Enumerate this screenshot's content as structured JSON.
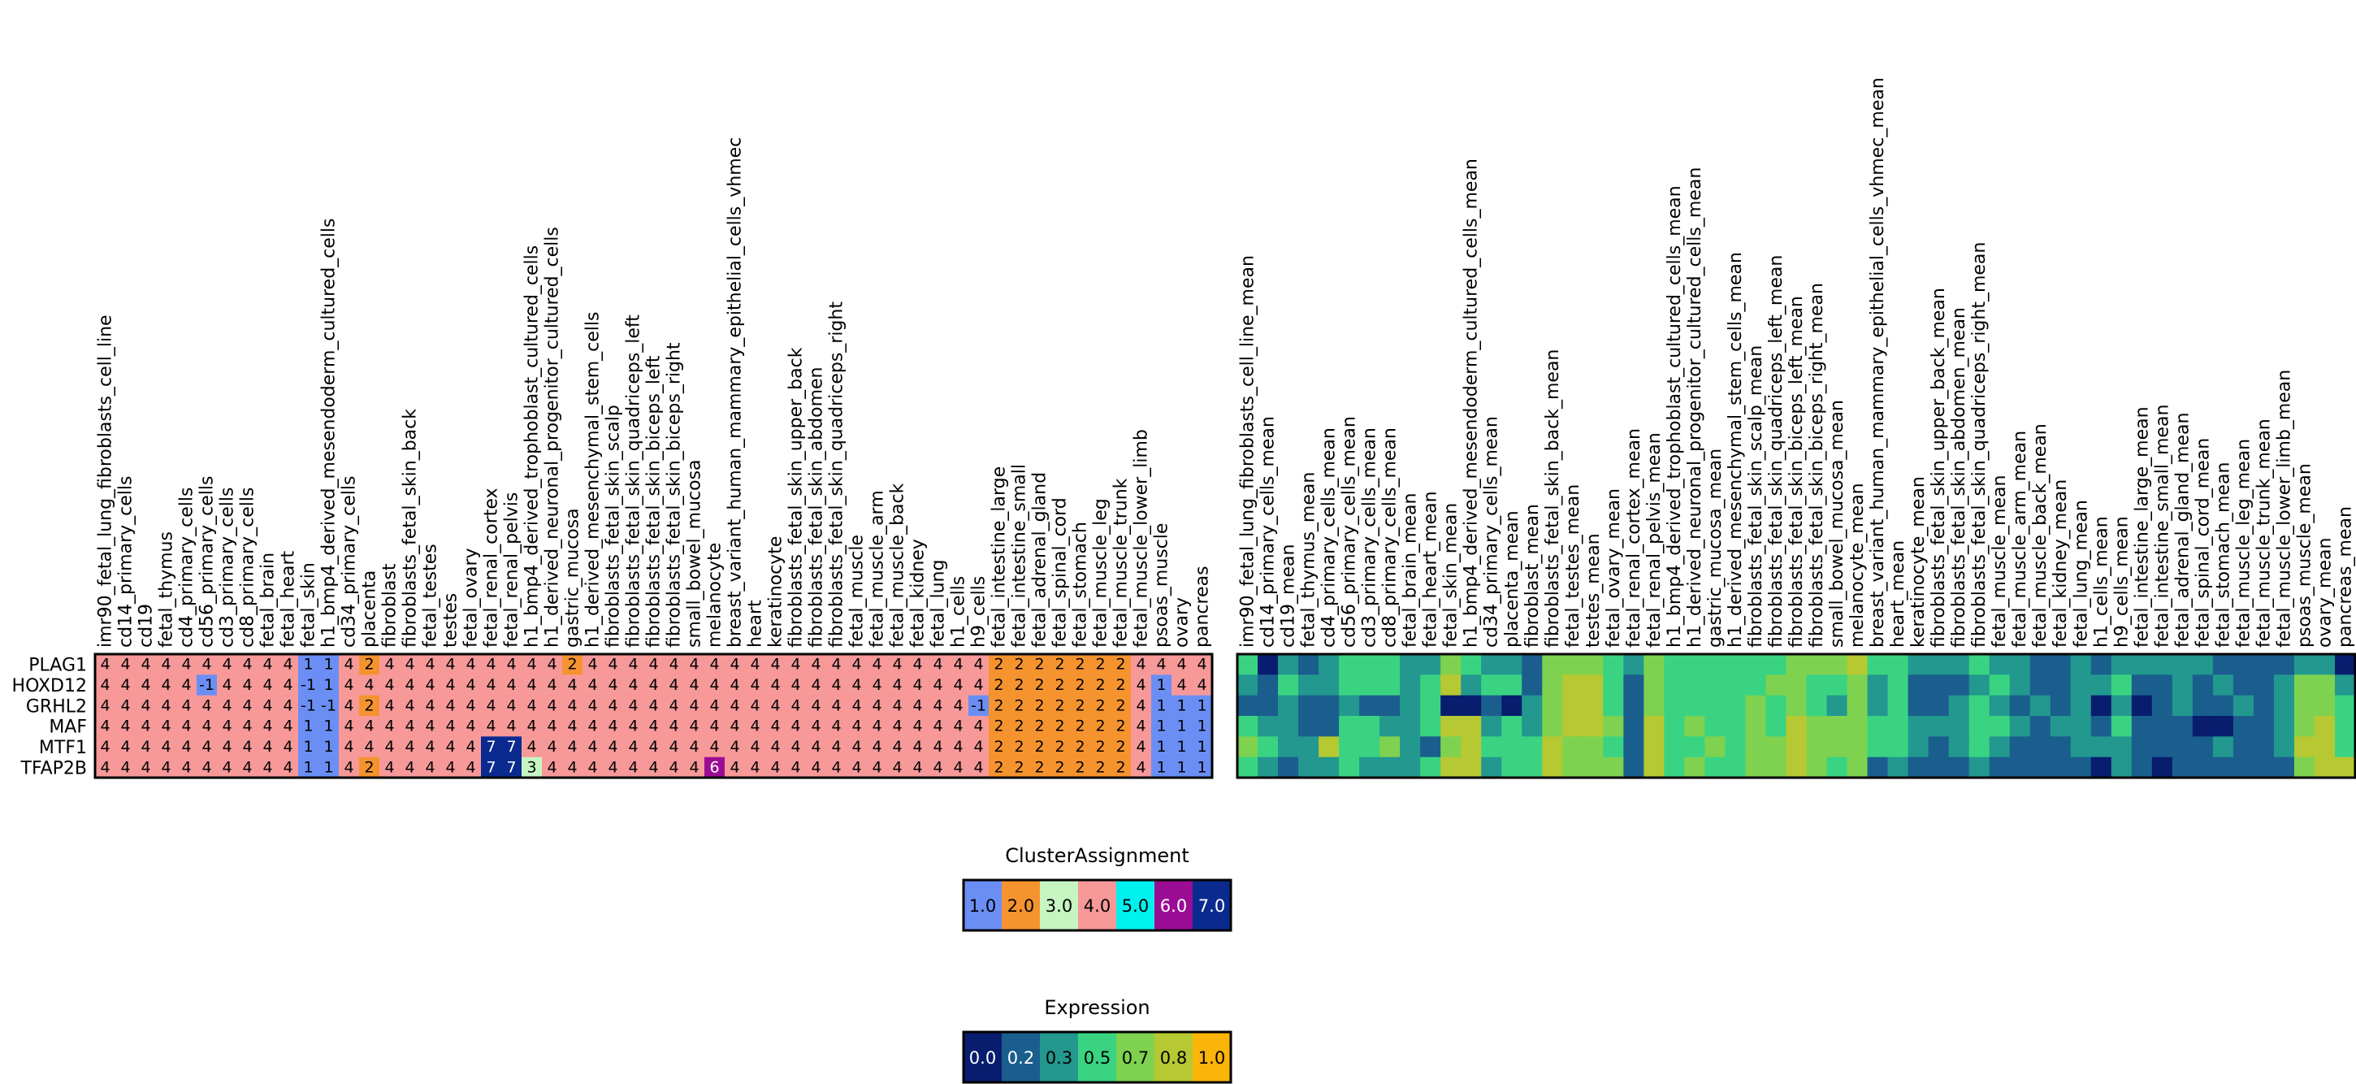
{
  "chart_data": [
    {
      "type": "heatmap",
      "title": "",
      "rows": [
        "PLAG1",
        "HOXD12",
        "GRHL2",
        "MAF",
        "MTF1",
        "TFAP2B"
      ],
      "columns": [
        "imr90_fetal_lung_fibroblasts_cell_line",
        "cd14_primary_cells",
        "cd19",
        "fetal_thymus",
        "cd4_primary_cells",
        "cd56_primary_cells",
        "cd3_primary_cells",
        "cd8_primary_cells",
        "fetal_brain",
        "fetal_heart",
        "fetal_skin",
        "h1_bmp4_derived_mesendoderm_cultured_cells",
        "cd34_primary_cells",
        "placenta",
        "fibroblast",
        "fibroblasts_fetal_skin_back",
        "fetal_testes",
        "testes",
        "fetal_ovary",
        "fetal_renal_cortex",
        "fetal_renal_pelvis",
        "h1_bmp4_derived_trophoblast_cultured_cells",
        "h1_derived_neuronal_progenitor_cultured_cells",
        "gastric_mucosa",
        "h1_derived_mesenchymal_stem_cells",
        "fibroblasts_fetal_skin_scalp",
        "fibroblasts_fetal_skin_quadriceps_left",
        "fibroblasts_fetal_skin_biceps_left",
        "fibroblasts_fetal_skin_biceps_right",
        "small_bowel_mucosa",
        "melanocyte",
        "breast_variant_human_mammary_epithelial_cells_vhmec",
        "heart",
        "keratinocyte",
        "fibroblasts_fetal_skin_upper_back",
        "fibroblasts_fetal_skin_abdomen",
        "fibroblasts_fetal_skin_quadriceps_right",
        "fetal_muscle",
        "fetal_muscle_arm",
        "fetal_muscle_back",
        "fetal_kidney",
        "fetal_lung",
        "h1_cells",
        "h9_cells",
        "fetal_intestine_large",
        "fetal_intestine_small",
        "fetal_adrenal_gland",
        "fetal_spinal_cord",
        "fetal_stomach",
        "fetal_muscle_leg",
        "fetal_muscle_trunk",
        "fetal_muscle_lower_limb",
        "psoas_muscle",
        "ovary",
        "pancreas"
      ],
      "values": [
        [
          4,
          4,
          4,
          4,
          4,
          4,
          4,
          4,
          4,
          4,
          1,
          1,
          4,
          2,
          4,
          4,
          4,
          4,
          4,
          4,
          4,
          4,
          4,
          2,
          4,
          4,
          4,
          4,
          4,
          4,
          4,
          4,
          4,
          4,
          4,
          4,
          4,
          4,
          4,
          4,
          4,
          4,
          4,
          4,
          2,
          2,
          2,
          2,
          2,
          2,
          2,
          4,
          4,
          4,
          4
        ],
        [
          4,
          4,
          4,
          4,
          4,
          -1,
          4,
          4,
          4,
          4,
          -1,
          1,
          4,
          4,
          4,
          4,
          4,
          4,
          4,
          4,
          4,
          4,
          4,
          4,
          4,
          4,
          4,
          4,
          4,
          4,
          4,
          4,
          4,
          4,
          4,
          4,
          4,
          4,
          4,
          4,
          4,
          4,
          4,
          4,
          2,
          2,
          2,
          2,
          2,
          2,
          2,
          4,
          1,
          4,
          4
        ],
        [
          4,
          4,
          4,
          4,
          4,
          4,
          4,
          4,
          4,
          4,
          -1,
          -1,
          4,
          2,
          4,
          4,
          4,
          4,
          4,
          4,
          4,
          4,
          4,
          4,
          4,
          4,
          4,
          4,
          4,
          4,
          4,
          4,
          4,
          4,
          4,
          4,
          4,
          4,
          4,
          4,
          4,
          4,
          4,
          -1,
          2,
          2,
          2,
          2,
          2,
          2,
          2,
          4,
          1,
          1,
          1
        ],
        [
          4,
          4,
          4,
          4,
          4,
          4,
          4,
          4,
          4,
          4,
          1,
          1,
          4,
          4,
          4,
          4,
          4,
          4,
          4,
          4,
          4,
          4,
          4,
          4,
          4,
          4,
          4,
          4,
          4,
          4,
          4,
          4,
          4,
          4,
          4,
          4,
          4,
          4,
          4,
          4,
          4,
          4,
          4,
          4,
          2,
          2,
          2,
          2,
          2,
          2,
          2,
          4,
          1,
          1,
          1
        ],
        [
          4,
          4,
          4,
          4,
          4,
          4,
          4,
          4,
          4,
          4,
          1,
          1,
          4,
          4,
          4,
          4,
          4,
          4,
          4,
          7,
          7,
          4,
          4,
          4,
          4,
          4,
          4,
          4,
          4,
          4,
          4,
          4,
          4,
          4,
          4,
          4,
          4,
          4,
          4,
          4,
          4,
          4,
          4,
          4,
          2,
          2,
          2,
          2,
          2,
          2,
          2,
          4,
          1,
          1,
          1
        ],
        [
          4,
          4,
          4,
          4,
          4,
          4,
          4,
          4,
          4,
          4,
          1,
          1,
          4,
          2,
          4,
          4,
          4,
          4,
          4,
          7,
          7,
          3,
          4,
          4,
          4,
          4,
          4,
          4,
          4,
          4,
          6,
          4,
          4,
          4,
          4,
          4,
          4,
          4,
          4,
          4,
          4,
          4,
          4,
          4,
          2,
          2,
          2,
          2,
          2,
          2,
          2,
          4,
          1,
          1,
          1
        ]
      ],
      "cell_labels_shown": true
    },
    {
      "type": "heatmap",
      "title": "",
      "rows": [
        "PLAG1",
        "HOXD12",
        "GRHL2",
        "MAF",
        "MTF1",
        "TFAP2B"
      ],
      "columns": [
        "imr90_fetal_lung_fibroblasts_cell_line_mean",
        "cd14_primary_cells_mean",
        "cd19_mean",
        "fetal_thymus_mean",
        "cd4_primary_cells_mean",
        "cd56_primary_cells_mean",
        "cd3_primary_cells_mean",
        "cd8_primary_cells_mean",
        "fetal_brain_mean",
        "fetal_heart_mean",
        "fetal_skin_mean",
        "h1_bmp4_derived_mesendoderm_cultured_cells_mean",
        "cd34_primary_cells_mean",
        "placenta_mean",
        "fibroblast_mean",
        "fibroblasts_fetal_skin_back_mean",
        "fetal_testes_mean",
        "testes_mean",
        "fetal_ovary_mean",
        "fetal_renal_cortex_mean",
        "fetal_renal_pelvis_mean",
        "h1_bmp4_derived_trophoblast_cultured_cells_mean",
        "h1_derived_neuronal_progenitor_cultured_cells_mean",
        "gastric_mucosa_mean",
        "h1_derived_mesenchymal_stem_cells_mean",
        "fibroblasts_fetal_skin_scalp_mean",
        "fibroblasts_fetal_skin_quadriceps_left_mean",
        "fibroblasts_fetal_skin_biceps_left_mean",
        "fibroblasts_fetal_skin_biceps_right_mean",
        "small_bowel_mucosa_mean",
        "melanocyte_mean",
        "breast_variant_human_mammary_epithelial_cells_vhmec_mean",
        "heart_mean",
        "keratinocyte_mean",
        "fibroblasts_fetal_skin_upper_back_mean",
        "fibroblasts_fetal_skin_abdomen_mean",
        "fibroblasts_fetal_skin_quadriceps_right_mean",
        "fetal_muscle_mean",
        "fetal_muscle_arm_mean",
        "fetal_muscle_back_mean",
        "fetal_kidney_mean",
        "fetal_lung_mean",
        "h1_cells_mean",
        "h9_cells_mean",
        "fetal_intestine_large_mean",
        "fetal_intestine_small_mean",
        "fetal_adrenal_gland_mean",
        "fetal_spinal_cord_mean",
        "fetal_stomach_mean",
        "fetal_muscle_leg_mean",
        "fetal_muscle_trunk_mean",
        "fetal_muscle_lower_limb_mean",
        "psoas_muscle_mean",
        "ovary_mean",
        "pancreas_mean"
      ],
      "values": [
        [
          0.5,
          0.0,
          0.3,
          0.2,
          0.3,
          0.5,
          0.5,
          0.5,
          0.3,
          0.3,
          0.7,
          0.5,
          0.3,
          0.3,
          0.2,
          0.7,
          0.7,
          0.7,
          0.5,
          0.3,
          0.7,
          0.5,
          0.5,
          0.5,
          0.5,
          0.5,
          0.5,
          0.7,
          0.7,
          0.7,
          0.8,
          0.5,
          0.5,
          0.3,
          0.3,
          0.3,
          0.5,
          0.3,
          0.3,
          0.2,
          0.2,
          0.3,
          0.2,
          0.3,
          0.3,
          0.3,
          0.3,
          0.3,
          0.2,
          0.2,
          0.2,
          0.2,
          0.3,
          0.3,
          0.0
        ],
        [
          0.3,
          0.2,
          0.5,
          0.3,
          0.3,
          0.5,
          0.5,
          0.5,
          0.3,
          0.5,
          0.8,
          0.3,
          0.5,
          0.5,
          0.2,
          0.7,
          0.8,
          0.8,
          0.5,
          0.2,
          0.7,
          0.5,
          0.5,
          0.5,
          0.5,
          0.5,
          0.7,
          0.7,
          0.5,
          0.5,
          0.7,
          0.3,
          0.5,
          0.2,
          0.2,
          0.2,
          0.3,
          0.5,
          0.3,
          0.2,
          0.2,
          0.3,
          0.3,
          0.5,
          0.2,
          0.2,
          0.3,
          0.2,
          0.3,
          0.2,
          0.2,
          0.3,
          0.7,
          0.7,
          0.3
        ],
        [
          0.2,
          0.2,
          0.3,
          0.2,
          0.2,
          0.3,
          0.2,
          0.2,
          0.3,
          0.5,
          0.0,
          0.0,
          0.2,
          0.0,
          0.3,
          0.7,
          0.8,
          0.8,
          0.5,
          0.2,
          0.7,
          0.5,
          0.5,
          0.5,
          0.5,
          0.7,
          0.5,
          0.7,
          0.5,
          0.3,
          0.7,
          0.3,
          0.5,
          0.2,
          0.2,
          0.3,
          0.5,
          0.3,
          0.2,
          0.3,
          0.2,
          0.3,
          0.0,
          0.3,
          0.0,
          0.2,
          0.3,
          0.2,
          0.2,
          0.3,
          0.2,
          0.3,
          0.7,
          0.7,
          0.5
        ],
        [
          0.5,
          0.3,
          0.3,
          0.2,
          0.2,
          0.5,
          0.5,
          0.3,
          0.3,
          0.5,
          0.8,
          0.8,
          0.3,
          0.5,
          0.3,
          0.7,
          0.8,
          0.8,
          0.7,
          0.2,
          0.8,
          0.5,
          0.7,
          0.5,
          0.5,
          0.7,
          0.5,
          0.8,
          0.7,
          0.7,
          0.7,
          0.5,
          0.5,
          0.3,
          0.3,
          0.3,
          0.5,
          0.5,
          0.3,
          0.2,
          0.3,
          0.3,
          0.2,
          0.5,
          0.2,
          0.2,
          0.2,
          0.0,
          0.0,
          0.2,
          0.2,
          0.3,
          0.7,
          0.8,
          0.5
        ],
        [
          0.7,
          0.5,
          0.3,
          0.3,
          0.8,
          0.5,
          0.5,
          0.7,
          0.3,
          0.2,
          0.7,
          0.8,
          0.5,
          0.5,
          0.5,
          0.8,
          0.7,
          0.7,
          0.5,
          0.2,
          0.8,
          0.5,
          0.5,
          0.7,
          0.5,
          0.7,
          0.7,
          0.8,
          0.7,
          0.7,
          0.7,
          0.5,
          0.5,
          0.3,
          0.2,
          0.3,
          0.5,
          0.3,
          0.2,
          0.2,
          0.2,
          0.3,
          0.3,
          0.3,
          0.2,
          0.2,
          0.2,
          0.2,
          0.3,
          0.2,
          0.2,
          0.3,
          0.8,
          0.8,
          0.5
        ],
        [
          0.5,
          0.3,
          0.2,
          0.3,
          0.3,
          0.5,
          0.3,
          0.3,
          0.3,
          0.5,
          0.8,
          0.8,
          0.3,
          0.5,
          0.5,
          0.8,
          0.7,
          0.7,
          0.7,
          0.2,
          0.8,
          0.5,
          0.7,
          0.5,
          0.5,
          0.7,
          0.7,
          0.8,
          0.7,
          0.5,
          0.7,
          0.2,
          0.3,
          0.2,
          0.2,
          0.2,
          0.3,
          0.2,
          0.2,
          0.2,
          0.2,
          0.2,
          0.0,
          0.3,
          0.2,
          0.0,
          0.2,
          0.2,
          0.2,
          0.2,
          0.2,
          0.2,
          0.7,
          0.8,
          0.8
        ]
      ]
    }
  ],
  "legends": [
    {
      "title": "ClusterAssignment",
      "entries": [
        {
          "label": "1.0",
          "color": "#6b8ef5"
        },
        {
          "label": "2.0",
          "color": "#f5932f"
        },
        {
          "label": "3.0",
          "color": "#c6f5c2"
        },
        {
          "label": "4.0",
          "color": "#f79999"
        },
        {
          "label": "5.0",
          "color": "#00f2f0"
        },
        {
          "label": "6.0",
          "color": "#9b0c95"
        },
        {
          "label": "7.0",
          "color": "#0a2a8f"
        }
      ]
    },
    {
      "title": "Expression",
      "entries": [
        {
          "label": "0.0",
          "color": "#081d6e"
        },
        {
          "label": "0.2",
          "color": "#1a5e8e"
        },
        {
          "label": "0.3",
          "color": "#22988f"
        },
        {
          "label": "0.5",
          "color": "#3ad382"
        },
        {
          "label": "0.7",
          "color": "#7ed24f"
        },
        {
          "label": "0.8",
          "color": "#b6c832"
        },
        {
          "label": "1.0",
          "color": "#fbb50a"
        }
      ]
    }
  ],
  "special_colors": {
    "-1": "#6b8ef5"
  }
}
